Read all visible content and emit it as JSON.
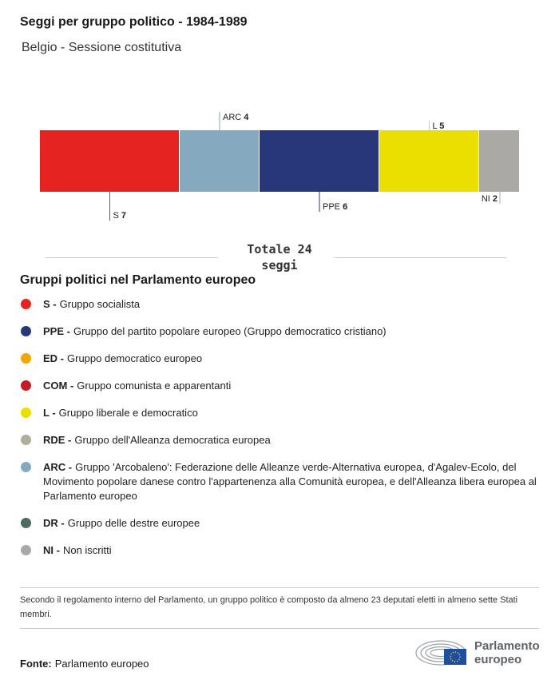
{
  "header": {
    "title": "Seggi per gruppo politico - 1984-1989",
    "subtitle": "Belgio - Sessione costitutiva"
  },
  "chart_data": {
    "type": "bar",
    "orientation": "horizontal-stacked",
    "categories": [
      "S",
      "ARC",
      "PPE",
      "L",
      "NI"
    ],
    "values": [
      7,
      4,
      6,
      5,
      2
    ],
    "colors": [
      "#e52421",
      "#85aabf",
      "#283779",
      "#ebdf00",
      "#aaa9a6"
    ],
    "label_side": [
      "below",
      "above",
      "below",
      "above",
      "below"
    ],
    "total_label": "Totale 24 seggi",
    "total": 24
  },
  "legend": {
    "title": "Gruppi politici nel Parlamento europeo",
    "items": [
      {
        "abbr": "S -",
        "text": "Gruppo socialista",
        "color": "#e52421"
      },
      {
        "abbr": "PPE -",
        "text": "Gruppo del partito popolare europeo (Gruppo democratico cristiano)",
        "color": "#283779"
      },
      {
        "abbr": "ED -",
        "text": "Gruppo democratico europeo",
        "color": "#f0a800"
      },
      {
        "abbr": "COM -",
        "text": "Gruppo comunista e apparentanti",
        "color": "#c21f24"
      },
      {
        "abbr": "L -",
        "text": "Gruppo liberale e democratico",
        "color": "#ebdf00"
      },
      {
        "abbr": "RDE -",
        "text": "Gruppo dell'Alleanza democratica europea",
        "color": "#b3ad9e"
      },
      {
        "abbr": "ARC -",
        "text": "Gruppo 'Arcobaleno': Federazione delle Alleanze verde-Alternativa europea, d'Agalev-Ecolo, del Movimento popolare danese contro l'appartenenza alla Comunità europea, e dell'Alleanza libera europea al Parlamento europeo",
        "color": "#85aabf"
      },
      {
        "abbr": "DR -",
        "text": "Gruppo delle destre europee",
        "color": "#4d6b60"
      },
      {
        "abbr": "NI -",
        "text": "Non iscritti",
        "color": "#aaa9a6"
      }
    ]
  },
  "note": "Secondo il regolamento interno del Parlamento, un gruppo politico è composto da almeno 23 deputati eletti in almeno sette Stati membri.",
  "source": {
    "label": "Fonte:",
    "value": "Parlamento europeo"
  },
  "logo": {
    "line1": "Parlamento",
    "line2": "europeo"
  }
}
